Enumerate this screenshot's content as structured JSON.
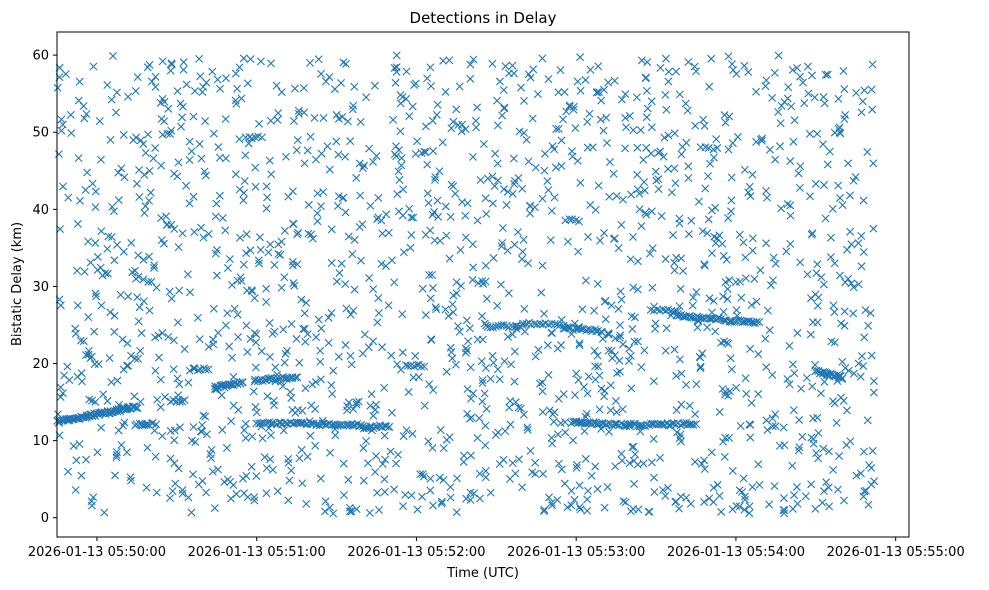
{
  "chart_data": {
    "type": "scatter",
    "title": "Detections in Delay",
    "xlabel": "Time (UTC)",
    "ylabel": "Bistatic Delay (km)",
    "marker": "x",
    "color": "#1f77b4",
    "xlim_seconds": [
      -15,
      305
    ],
    "ylim": [
      -2.5,
      63
    ],
    "x_ticks": [
      {
        "value": 0,
        "label": "2026-01-13 05:50:00"
      },
      {
        "value": 60,
        "label": "2026-01-13 05:51:00"
      },
      {
        "value": 120,
        "label": "2026-01-13 05:52:00"
      },
      {
        "value": 180,
        "label": "2026-01-13 05:53:00"
      },
      {
        "value": 240,
        "label": "2026-01-13 05:54:00"
      },
      {
        "value": 300,
        "label": "2026-01-13 05:55:00"
      }
    ],
    "y_ticks": [
      {
        "value": 0,
        "label": "0"
      },
      {
        "value": 10,
        "label": "10"
      },
      {
        "value": 20,
        "label": "20"
      },
      {
        "value": 30,
        "label": "30"
      },
      {
        "value": 40,
        "label": "40"
      },
      {
        "value": 50,
        "label": "50"
      },
      {
        "value": 60,
        "label": "60"
      }
    ],
    "time_span_seconds": [
      -15,
      292
    ],
    "noise_points_count": 1700,
    "noise_delay_range": [
      0.5,
      60
    ],
    "tracks": [
      {
        "t_start": -15,
        "t_end": 15,
        "delay_start": 12.4,
        "delay_end": 14.4,
        "points": 70
      },
      {
        "t_start": 15,
        "t_end": 22,
        "delay_start": 12.1,
        "delay_end": 12.2,
        "points": 10
      },
      {
        "t_start": 28,
        "t_end": 33,
        "delay_start": 15.2,
        "delay_end": 15.2,
        "points": 7
      },
      {
        "t_start": 35,
        "t_end": 42,
        "delay_start": 19.2,
        "delay_end": 19.4,
        "points": 8
      },
      {
        "t_start": 44,
        "t_end": 55,
        "delay_start": 16.8,
        "delay_end": 17.6,
        "points": 22
      },
      {
        "t_start": 56,
        "t_end": 62,
        "delay_start": 49.3,
        "delay_end": 49.3,
        "points": 6
      },
      {
        "t_start": 59,
        "t_end": 75,
        "delay_start": 17.8,
        "delay_end": 18.3,
        "points": 25
      },
      {
        "t_start": 60,
        "t_end": 100,
        "delay_start": 12.3,
        "delay_end": 12.0,
        "points": 55
      },
      {
        "t_start": 100,
        "t_end": 110,
        "delay_start": 11.7,
        "delay_end": 11.9,
        "points": 16
      },
      {
        "t_start": 116,
        "t_end": 123,
        "delay_start": 19.7,
        "delay_end": 19.7,
        "points": 8
      },
      {
        "t_start": 146,
        "t_end": 160,
        "delay_start": 24.8,
        "delay_end": 24.9,
        "points": 15
      },
      {
        "t_start": 160,
        "t_end": 175,
        "delay_start": 25.2,
        "delay_end": 25.0,
        "points": 15
      },
      {
        "t_start": 175,
        "t_end": 190,
        "delay_start": 24.6,
        "delay_end": 24.2,
        "points": 20
      },
      {
        "t_start": 178,
        "t_end": 200,
        "delay_start": 12.4,
        "delay_end": 12.0,
        "points": 35
      },
      {
        "t_start": 200,
        "t_end": 225,
        "delay_start": 12.0,
        "delay_end": 12.2,
        "points": 35
      },
      {
        "t_start": 208,
        "t_end": 218,
        "delay_start": 27.0,
        "delay_end": 26.8,
        "points": 10
      },
      {
        "t_start": 218,
        "t_end": 238,
        "delay_start": 26.3,
        "delay_end": 25.6,
        "points": 30
      },
      {
        "t_start": 238,
        "t_end": 248,
        "delay_start": 25.5,
        "delay_end": 25.4,
        "points": 15
      },
      {
        "t_start": 270,
        "t_end": 280,
        "delay_start": 19.0,
        "delay_end": 18.2,
        "points": 22
      },
      {
        "t_start": 176,
        "t_end": 181,
        "delay_start": 38.6,
        "delay_end": 38.6,
        "points": 5
      },
      {
        "t_start": 227,
        "t_end": 233,
        "delay_start": 47.9,
        "delay_end": 47.9,
        "points": 5
      }
    ]
  }
}
